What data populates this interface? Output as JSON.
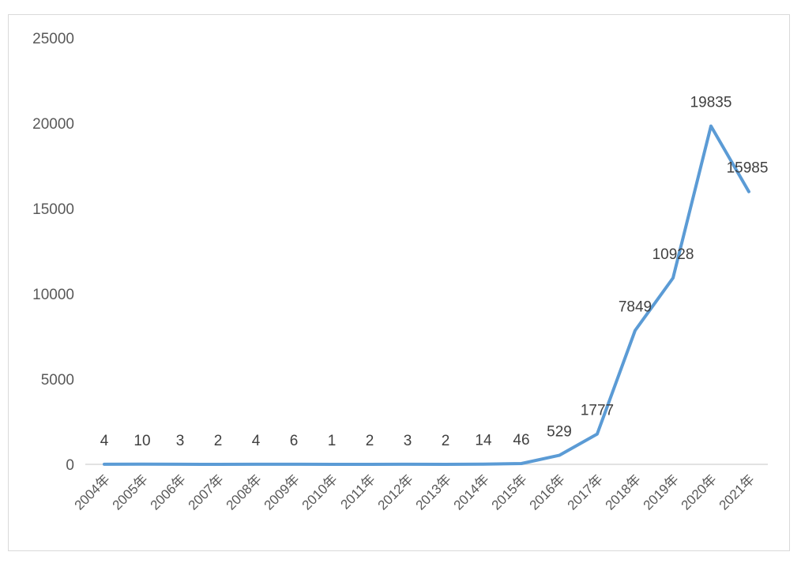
{
  "chart_data": {
    "type": "line",
    "categories": [
      "2004年",
      "2005年",
      "2006年",
      "2007年",
      "2008年",
      "2009年",
      "2010年",
      "2011年",
      "2012年",
      "2013年",
      "2014年",
      "2015年",
      "2016年",
      "2017年",
      "2018年",
      "2019年",
      "2020年",
      "2021年"
    ],
    "series": [
      {
        "values": [
          4,
          10,
          3,
          2,
          4,
          6,
          1,
          2,
          3,
          2,
          14,
          46,
          529,
          1777,
          7849,
          10928,
          19835,
          15985
        ]
      }
    ],
    "data_labels": [
      "4",
      "10",
      "3",
      "2",
      "4",
      "6",
      "1",
      "2",
      "3",
      "2",
      "14",
      "46",
      "529",
      "1777",
      "7849",
      "10928",
      "19835",
      "15985"
    ],
    "y_ticks": [
      "0",
      "5000",
      "10000",
      "15000",
      "20000",
      "25000"
    ],
    "ylim": [
      0,
      25000
    ],
    "title": "",
    "xlabel": "",
    "ylabel": "",
    "grid": false,
    "legend": "none",
    "colors": {
      "line": "#5b9bd5",
      "axis": "#d9d9d9",
      "text": "#595959"
    }
  }
}
